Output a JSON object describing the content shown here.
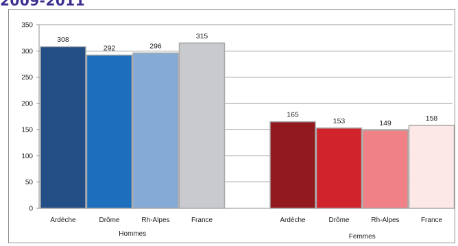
{
  "page": {
    "title": "2009-2011"
  },
  "chart_data": {
    "type": "bar",
    "ylim": [
      0,
      350
    ],
    "yticks": [
      0,
      50,
      100,
      150,
      200,
      250,
      300,
      350
    ],
    "grid": true,
    "groups": [
      {
        "label": "Hommes",
        "bars": [
          {
            "category": "Ardèche",
            "value": 308,
            "color": "#234e86"
          },
          {
            "category": "Drôme",
            "value": 292,
            "color": "#1b6fbd"
          },
          {
            "category": "Rh-Alpes",
            "value": 296,
            "color": "#85aad6"
          },
          {
            "category": "France",
            "value": 315,
            "color": "#c9cacd"
          }
        ]
      },
      {
        "label": "Femmes",
        "bars": [
          {
            "category": "Ardèche",
            "value": 165,
            "color": "#921a1f"
          },
          {
            "category": "Drôme",
            "value": 153,
            "color": "#d1232b"
          },
          {
            "category": "Rh-Alpes",
            "value": 149,
            "color": "#f08186"
          },
          {
            "category": "France",
            "value": 158,
            "color": "#fde8e8"
          }
        ]
      }
    ]
  }
}
